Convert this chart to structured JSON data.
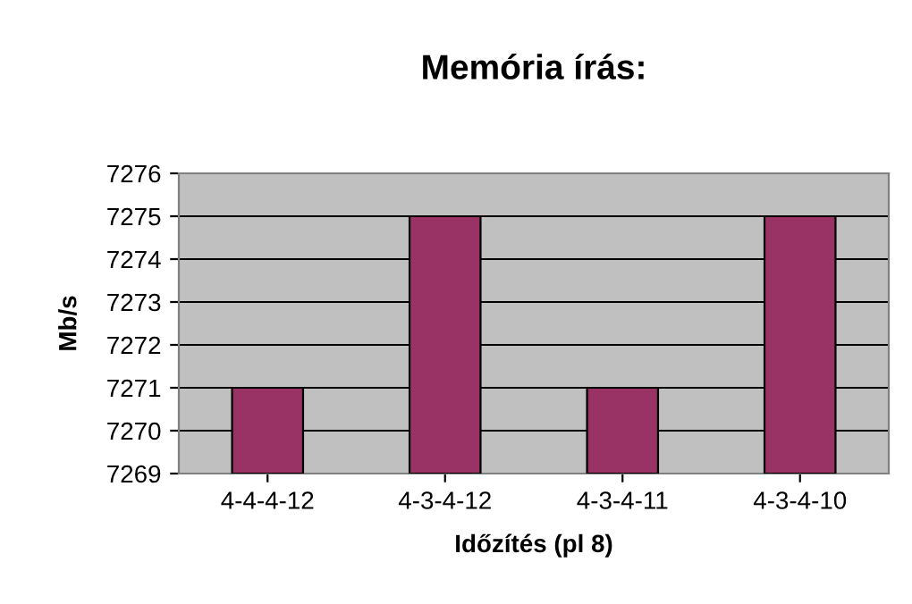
{
  "chart_data": {
    "type": "bar",
    "title": "Memória írás:",
    "xlabel": "Időzítés (pl 8)",
    "ylabel": "Mb/s",
    "categories": [
      "4-4-4-12",
      "4-3-4-12",
      "4-3-4-11",
      "4-3-4-10"
    ],
    "values": [
      7271,
      7275,
      7271,
      7275
    ],
    "color": "#993366",
    "ylim": [
      7269,
      7276
    ],
    "yticks": [
      7269,
      7270,
      7271,
      7272,
      7273,
      7274,
      7275,
      7276
    ],
    "grid": "y"
  }
}
